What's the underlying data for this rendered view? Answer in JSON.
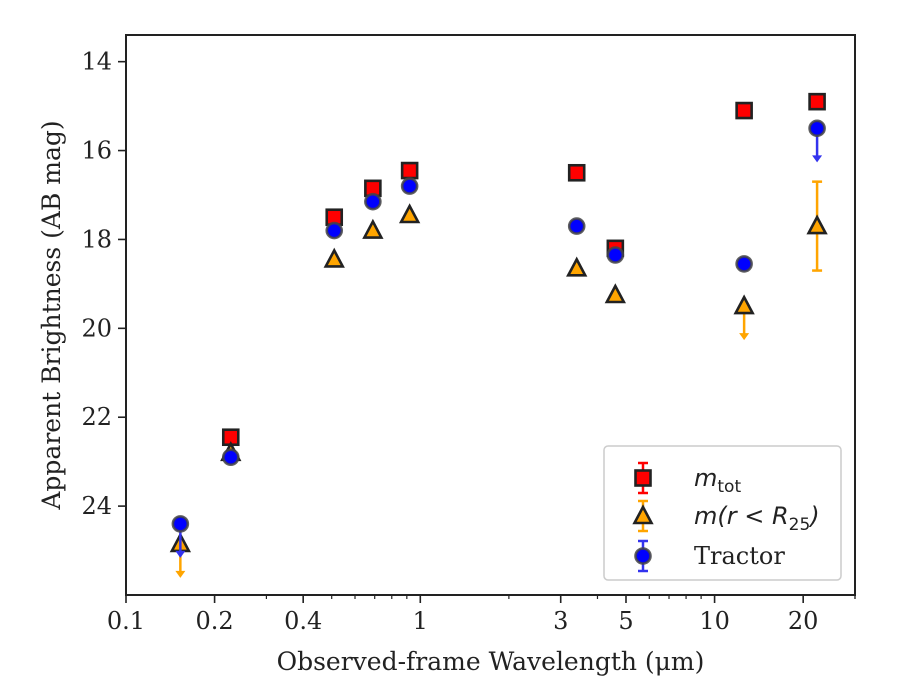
{
  "chart_data": {
    "type": "scatter",
    "title": "",
    "xlabel": "Observed-frame Wavelength (μm)",
    "ylabel": "Apparent Brightness (AB mag)",
    "x_scale": "log",
    "xlim": [
      0.1,
      30
    ],
    "ylim": [
      26.0,
      13.4
    ],
    "y_inverted": true,
    "grid": false,
    "legend_position": "lower-right",
    "x_ticks": [
      {
        "value": 0.1,
        "label": "0.1"
      },
      {
        "value": 0.2,
        "label": "0.2"
      },
      {
        "value": 0.4,
        "label": "0.4"
      },
      {
        "value": 1,
        "label": "1"
      },
      {
        "value": 3,
        "label": "3"
      },
      {
        "value": 5,
        "label": "5"
      },
      {
        "value": 10,
        "label": "10"
      },
      {
        "value": 20,
        "label": "20"
      }
    ],
    "y_ticks": [
      {
        "value": 14,
        "label": "14"
      },
      {
        "value": 16,
        "label": "16"
      },
      {
        "value": 18,
        "label": "18"
      },
      {
        "value": 20,
        "label": "20"
      },
      {
        "value": 22,
        "label": "22"
      },
      {
        "value": 24,
        "label": "24"
      }
    ],
    "series": [
      {
        "name_main": "m",
        "name_sub": "tot",
        "marker": "square",
        "color": "#ff0000",
        "errcolor": "#ff0000",
        "points": [
          {
            "x": 0.227,
            "y": 22.45
          },
          {
            "x": 0.51,
            "y": 17.5
          },
          {
            "x": 0.69,
            "y": 16.85
          },
          {
            "x": 0.92,
            "y": 16.45
          },
          {
            "x": 3.4,
            "y": 16.5
          },
          {
            "x": 4.6,
            "y": 18.2
          },
          {
            "x": 12.6,
            "y": 15.1
          },
          {
            "x": 22.3,
            "y": 14.9
          }
        ]
      },
      {
        "name_main": "m(r < R",
        "name_sub": "25",
        "name_tail": ")",
        "marker": "triangle",
        "color": "#ffa500",
        "errcolor": "#ffa500",
        "points": [
          {
            "x": 0.153,
            "y": 24.85,
            "upper_limit": true
          },
          {
            "x": 0.227,
            "y": 22.8
          },
          {
            "x": 0.51,
            "y": 18.45
          },
          {
            "x": 0.69,
            "y": 17.8
          },
          {
            "x": 0.92,
            "y": 17.45
          },
          {
            "x": 3.4,
            "y": 18.65
          },
          {
            "x": 4.6,
            "y": 19.25
          },
          {
            "x": 12.6,
            "y": 19.5,
            "upper_limit": true
          },
          {
            "x": 22.3,
            "y": 17.7,
            "err": 1.0
          }
        ]
      },
      {
        "name_main": "Tractor",
        "marker": "circle",
        "color": "#0000ff",
        "errcolor": "#3333ee",
        "points": [
          {
            "x": 0.153,
            "y": 24.4,
            "upper_limit": true
          },
          {
            "x": 0.227,
            "y": 22.9
          },
          {
            "x": 0.51,
            "y": 17.8
          },
          {
            "x": 0.69,
            "y": 17.15
          },
          {
            "x": 0.92,
            "y": 16.8
          },
          {
            "x": 3.4,
            "y": 17.7
          },
          {
            "x": 4.6,
            "y": 18.35
          },
          {
            "x": 12.6,
            "y": 18.55
          },
          {
            "x": 22.3,
            "y": 15.5,
            "upper_limit": true
          }
        ]
      }
    ]
  }
}
